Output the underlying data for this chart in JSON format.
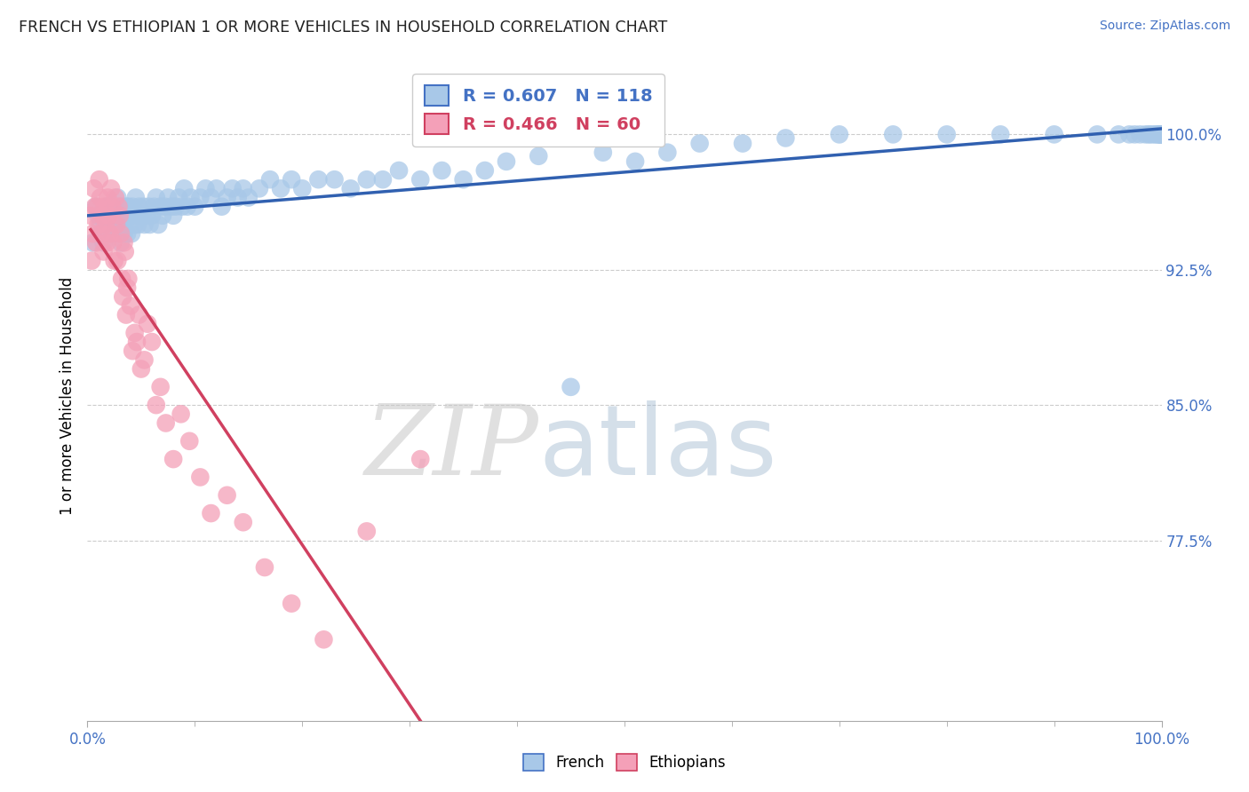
{
  "title": "FRENCH VS ETHIOPIAN 1 OR MORE VEHICLES IN HOUSEHOLD CORRELATION CHART",
  "source": "Source: ZipAtlas.com",
  "ylabel": "1 or more Vehicles in Household",
  "xlim": [
    0.0,
    1.0
  ],
  "ylim": [
    0.675,
    1.035
  ],
  "yticks": [
    0.775,
    0.85,
    0.925,
    1.0
  ],
  "ytick_labels": [
    "77.5%",
    "85.0%",
    "92.5%",
    "100.0%"
  ],
  "xtick_labels": [
    "0.0%",
    "100.0%"
  ],
  "french_color": "#a8c8e8",
  "ethiopian_color": "#f4a0b8",
  "french_line_color": "#3060b0",
  "ethiopian_line_color": "#d04060",
  "french_R": 0.607,
  "french_N": 118,
  "ethiopian_R": 0.466,
  "ethiopian_N": 60,
  "watermark_zip": "ZIP",
  "watermark_atlas": "atlas",
  "french_scatter_x": [
    0.005,
    0.008,
    0.01,
    0.012,
    0.013,
    0.015,
    0.016,
    0.017,
    0.018,
    0.019,
    0.02,
    0.021,
    0.022,
    0.023,
    0.024,
    0.025,
    0.026,
    0.027,
    0.028,
    0.029,
    0.03,
    0.031,
    0.032,
    0.033,
    0.034,
    0.035,
    0.036,
    0.037,
    0.038,
    0.04,
    0.041,
    0.042,
    0.043,
    0.044,
    0.045,
    0.047,
    0.048,
    0.05,
    0.052,
    0.053,
    0.055,
    0.057,
    0.058,
    0.06,
    0.062,
    0.064,
    0.066,
    0.068,
    0.07,
    0.072,
    0.075,
    0.078,
    0.08,
    0.082,
    0.085,
    0.088,
    0.09,
    0.093,
    0.096,
    0.1,
    0.105,
    0.11,
    0.115,
    0.12,
    0.125,
    0.13,
    0.135,
    0.14,
    0.145,
    0.15,
    0.16,
    0.17,
    0.18,
    0.19,
    0.2,
    0.215,
    0.23,
    0.245,
    0.26,
    0.275,
    0.29,
    0.31,
    0.33,
    0.35,
    0.37,
    0.39,
    0.42,
    0.45,
    0.48,
    0.51,
    0.54,
    0.57,
    0.61,
    0.65,
    0.7,
    0.75,
    0.8,
    0.85,
    0.9,
    0.94,
    0.96,
    0.97,
    0.975,
    0.98,
    0.985,
    0.988,
    0.99,
    0.993,
    0.995,
    0.997,
    0.998,
    0.999,
    0.999,
    1.0,
    1.0,
    1.0,
    1.0,
    1.0
  ],
  "french_scatter_y": [
    0.94,
    0.96,
    0.955,
    0.95,
    0.945,
    0.94,
    0.955,
    0.95,
    0.96,
    0.955,
    0.945,
    0.96,
    0.95,
    0.955,
    0.945,
    0.96,
    0.95,
    0.955,
    0.965,
    0.95,
    0.955,
    0.94,
    0.96,
    0.95,
    0.945,
    0.955,
    0.96,
    0.945,
    0.96,
    0.955,
    0.945,
    0.96,
    0.955,
    0.95,
    0.965,
    0.95,
    0.96,
    0.955,
    0.96,
    0.95,
    0.955,
    0.96,
    0.95,
    0.955,
    0.96,
    0.965,
    0.95,
    0.96,
    0.955,
    0.96,
    0.965,
    0.96,
    0.955,
    0.96,
    0.965,
    0.96,
    0.97,
    0.96,
    0.965,
    0.96,
    0.965,
    0.97,
    0.965,
    0.97,
    0.96,
    0.965,
    0.97,
    0.965,
    0.97,
    0.965,
    0.97,
    0.975,
    0.97,
    0.975,
    0.97,
    0.975,
    0.975,
    0.97,
    0.975,
    0.975,
    0.98,
    0.975,
    0.98,
    0.975,
    0.98,
    0.985,
    0.988,
    0.86,
    0.99,
    0.985,
    0.99,
    0.995,
    0.995,
    0.998,
    1.0,
    1.0,
    1.0,
    1.0,
    1.0,
    1.0,
    1.0,
    1.0,
    1.0,
    1.0,
    1.0,
    1.0,
    1.0,
    1.0,
    1.0,
    1.0,
    1.0,
    1.0,
    1.0,
    1.0,
    1.0,
    1.0,
    1.0,
    1.0
  ],
  "ethiopian_scatter_x": [
    0.003,
    0.004,
    0.005,
    0.006,
    0.007,
    0.008,
    0.009,
    0.01,
    0.011,
    0.012,
    0.013,
    0.014,
    0.015,
    0.016,
    0.017,
    0.018,
    0.019,
    0.02,
    0.021,
    0.022,
    0.023,
    0.024,
    0.025,
    0.026,
    0.027,
    0.028,
    0.029,
    0.03,
    0.031,
    0.032,
    0.033,
    0.034,
    0.035,
    0.036,
    0.037,
    0.038,
    0.04,
    0.042,
    0.044,
    0.046,
    0.048,
    0.05,
    0.053,
    0.056,
    0.06,
    0.064,
    0.068,
    0.073,
    0.08,
    0.087,
    0.095,
    0.105,
    0.115,
    0.13,
    0.145,
    0.165,
    0.19,
    0.22,
    0.26,
    0.31
  ],
  "ethiopian_scatter_y": [
    0.955,
    0.93,
    0.945,
    0.97,
    0.96,
    0.94,
    0.96,
    0.95,
    0.975,
    0.965,
    0.945,
    0.955,
    0.935,
    0.96,
    0.95,
    0.94,
    0.965,
    0.955,
    0.945,
    0.97,
    0.96,
    0.94,
    0.93,
    0.965,
    0.95,
    0.93,
    0.96,
    0.955,
    0.945,
    0.92,
    0.91,
    0.94,
    0.935,
    0.9,
    0.915,
    0.92,
    0.905,
    0.88,
    0.89,
    0.885,
    0.9,
    0.87,
    0.875,
    0.895,
    0.885,
    0.85,
    0.86,
    0.84,
    0.82,
    0.845,
    0.83,
    0.81,
    0.79,
    0.8,
    0.785,
    0.76,
    0.74,
    0.72,
    0.78,
    0.82
  ]
}
